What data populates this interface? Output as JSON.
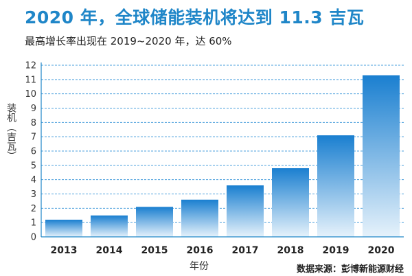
{
  "chart_data": {
    "type": "bar",
    "title": "2020 年，全球储能装机将达到 11.3 吉瓦",
    "subtitle": "最高增长率出现在 2019~2020 年，达 60%",
    "ylabel": "装机（吉瓦）",
    "xlabel": "年份",
    "source": "数据来源：彭博新能源财经",
    "categories": [
      "2013",
      "2014",
      "2015",
      "2016",
      "2017",
      "2018",
      "2019",
      "2020"
    ],
    "values": [
      1.2,
      1.5,
      2.1,
      2.6,
      3.6,
      4.8,
      7.1,
      11.3
    ],
    "ylim": [
      0,
      12
    ],
    "yticks": [
      0,
      1,
      2,
      3,
      4,
      5,
      6,
      7,
      8,
      9,
      10,
      11,
      12
    ],
    "grid": true,
    "legend": "none",
    "colors": {
      "title": "#1f86c8",
      "bar_top": "#1a7fd0",
      "bar_bottom": "#e6f2fb",
      "grid": "#4a9fdc",
      "axis": "#1f86c8"
    }
  }
}
